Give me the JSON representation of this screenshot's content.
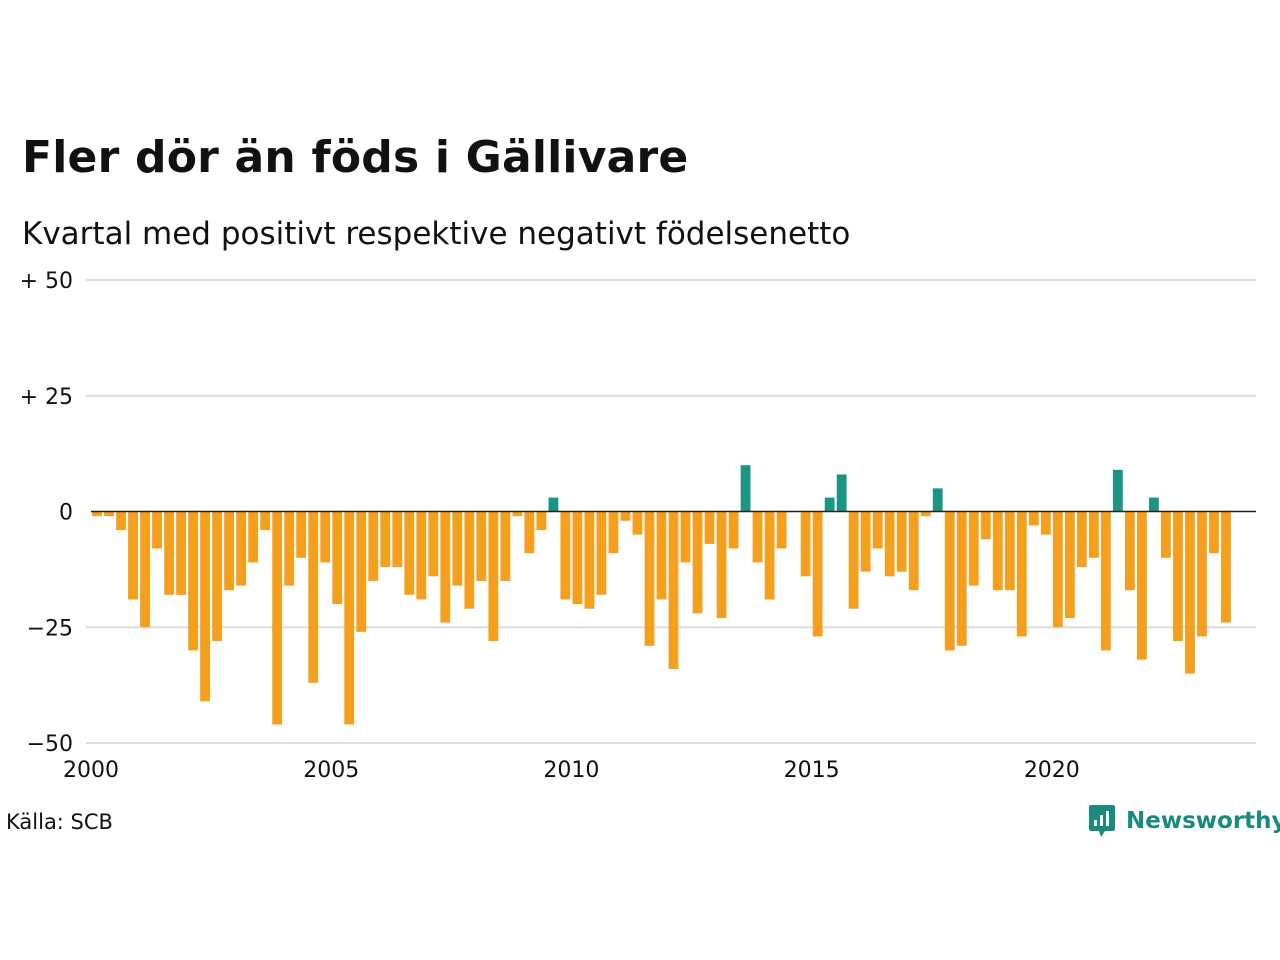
{
  "title": "Fler dör än föds i Gällivare",
  "subtitle": "Kvartal med positivt respektive negativt födelsenetto",
  "source": "Källa: SCB",
  "brand": {
    "name": "Newsworthy",
    "icon": "newsworthy-logo-icon"
  },
  "colors": {
    "positive": "#1a9485",
    "negative": "#f59f1e",
    "grid": "#dedede",
    "zero_line": "#222222"
  },
  "chart_data": {
    "type": "bar",
    "x_start": 2000,
    "x_step": 0.25,
    "xlim": [
      2000,
      2024.25
    ],
    "ylim": [
      -50,
      50
    ],
    "yticks": [
      50,
      25,
      0,
      -25,
      -50
    ],
    "ytick_labels": [
      "+ 50",
      "+ 25",
      "0",
      "−25",
      "−50"
    ],
    "xticks": [
      2000,
      2005,
      2010,
      2015,
      2020
    ],
    "xtick_labels": [
      "2000",
      "2005",
      "2010",
      "2015",
      "2020"
    ],
    "grid": true,
    "values": [
      -1,
      -1,
      -4,
      -19,
      -25,
      -8,
      -18,
      -18,
      -30,
      -41,
      -28,
      -17,
      -16,
      -11,
      -4,
      -46,
      -16,
      -10,
      -37,
      -11,
      -20,
      -46,
      -26,
      -15,
      -12,
      -12,
      -18,
      -19,
      -14,
      -24,
      -16,
      -21,
      -15,
      -28,
      -15,
      -1,
      -9,
      -4,
      3,
      -19,
      -20,
      -21,
      -18,
      -9,
      -2,
      -5,
      -29,
      -19,
      -34,
      -11,
      -22,
      -7,
      -23,
      -8,
      10,
      -11,
      -19,
      -8,
      0,
      -14,
      -27,
      3,
      8,
      -21,
      -13,
      -8,
      -14,
      -13,
      -17,
      -1,
      5,
      -30,
      -29,
      -16,
      -6,
      -17,
      -17,
      -27,
      -3,
      -5,
      -25,
      -23,
      -12,
      -10,
      -30,
      9,
      -17,
      -32,
      3,
      -10,
      -28,
      -35,
      -27,
      -9,
      -24
    ]
  }
}
